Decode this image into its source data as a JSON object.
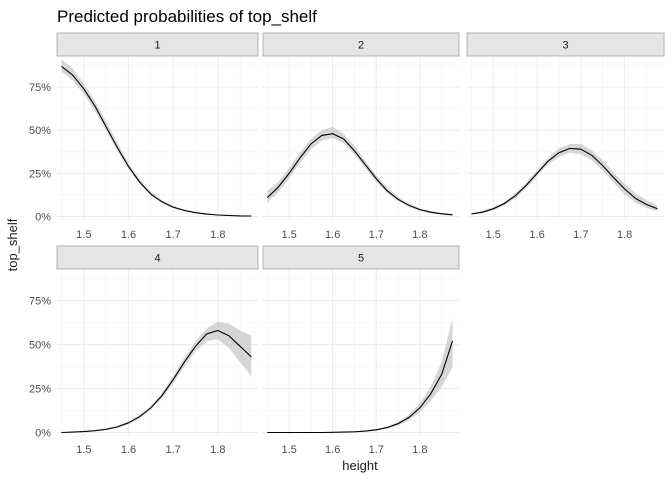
{
  "chart_data": {
    "type": "line",
    "title": "Predicted probabilities of top_shelf",
    "xlabel": "height",
    "ylabel": "top_shelf",
    "xlim": [
      1.44,
      1.89
    ],
    "ylim": [
      -0.02,
      0.93
    ],
    "x_ticks": [
      1.5,
      1.6,
      1.7,
      1.8
    ],
    "x_tick_labels": [
      "1.5",
      "1.6",
      "1.7",
      "1.8"
    ],
    "y_ticks": [
      0,
      0.25,
      0.5,
      0.75
    ],
    "y_tick_labels": [
      "0%",
      "25%",
      "50%",
      "75%"
    ],
    "grid": true,
    "x": [
      1.45,
      1.475,
      1.5,
      1.525,
      1.55,
      1.575,
      1.6,
      1.625,
      1.65,
      1.675,
      1.7,
      1.725,
      1.75,
      1.775,
      1.8,
      1.825,
      1.85,
      1.875
    ],
    "panels": [
      {
        "label": "1",
        "values": [
          0.87,
          0.82,
          0.74,
          0.64,
          0.52,
          0.4,
          0.29,
          0.2,
          0.13,
          0.085,
          0.055,
          0.035,
          0.022,
          0.014,
          0.009,
          0.006,
          0.004,
          0.003
        ],
        "lower": [
          0.84,
          0.79,
          0.71,
          0.61,
          0.5,
          0.38,
          0.275,
          0.19,
          0.12,
          0.078,
          0.049,
          0.03,
          0.018,
          0.011,
          0.007,
          0.004,
          0.002,
          0.001
        ],
        "upper": [
          0.91,
          0.86,
          0.77,
          0.67,
          0.55,
          0.43,
          0.31,
          0.215,
          0.145,
          0.095,
          0.063,
          0.042,
          0.028,
          0.019,
          0.013,
          0.01,
          0.008,
          0.006
        ]
      },
      {
        "label": "2",
        "values": [
          0.11,
          0.17,
          0.25,
          0.34,
          0.42,
          0.47,
          0.48,
          0.45,
          0.38,
          0.3,
          0.22,
          0.15,
          0.1,
          0.065,
          0.04,
          0.025,
          0.016,
          0.01
        ],
        "lower": [
          0.08,
          0.14,
          0.22,
          0.31,
          0.39,
          0.44,
          0.455,
          0.425,
          0.36,
          0.28,
          0.2,
          0.135,
          0.088,
          0.055,
          0.032,
          0.018,
          0.01,
          0.005
        ],
        "upper": [
          0.15,
          0.2,
          0.28,
          0.37,
          0.45,
          0.5,
          0.52,
          0.48,
          0.41,
          0.32,
          0.24,
          0.17,
          0.115,
          0.075,
          0.048,
          0.032,
          0.022,
          0.016
        ]
      },
      {
        "label": "3",
        "values": [
          0.015,
          0.025,
          0.045,
          0.075,
          0.12,
          0.18,
          0.25,
          0.32,
          0.37,
          0.395,
          0.39,
          0.355,
          0.295,
          0.225,
          0.16,
          0.105,
          0.07,
          0.045
        ],
        "lower": [
          0.01,
          0.019,
          0.036,
          0.065,
          0.105,
          0.165,
          0.235,
          0.3,
          0.345,
          0.37,
          0.36,
          0.325,
          0.265,
          0.195,
          0.13,
          0.08,
          0.05,
          0.03
        ],
        "upper": [
          0.021,
          0.032,
          0.055,
          0.085,
          0.135,
          0.195,
          0.27,
          0.34,
          0.395,
          0.42,
          0.42,
          0.385,
          0.325,
          0.255,
          0.19,
          0.135,
          0.095,
          0.065
        ]
      },
      {
        "label": "4",
        "values": [
          0.0,
          0.002,
          0.005,
          0.01,
          0.018,
          0.032,
          0.055,
          0.09,
          0.14,
          0.21,
          0.3,
          0.4,
          0.49,
          0.56,
          0.58,
          0.55,
          0.49,
          0.43
        ],
        "lower": [
          0.0,
          0.001,
          0.003,
          0.007,
          0.014,
          0.026,
          0.047,
          0.08,
          0.13,
          0.195,
          0.28,
          0.375,
          0.46,
          0.52,
          0.53,
          0.48,
          0.4,
          0.32
        ],
        "upper": [
          0.001,
          0.003,
          0.007,
          0.013,
          0.022,
          0.038,
          0.063,
          0.1,
          0.15,
          0.225,
          0.32,
          0.425,
          0.52,
          0.59,
          0.63,
          0.62,
          0.58,
          0.55
        ]
      },
      {
        "label": "5",
        "values": [
          0.0,
          0.0,
          0.0,
          0.0,
          0.0,
          0.0,
          0.001,
          0.002,
          0.004,
          0.008,
          0.015,
          0.028,
          0.05,
          0.085,
          0.14,
          0.22,
          0.33,
          0.52
        ],
        "lower": [
          0.0,
          0.0,
          0.0,
          0.0,
          0.0,
          0.0,
          0.0,
          0.001,
          0.002,
          0.005,
          0.011,
          0.022,
          0.04,
          0.07,
          0.115,
          0.18,
          0.26,
          0.37
        ],
        "upper": [
          0.0,
          0.0,
          0.0,
          0.0,
          0.0,
          0.001,
          0.002,
          0.003,
          0.006,
          0.011,
          0.019,
          0.034,
          0.06,
          0.1,
          0.165,
          0.26,
          0.4,
          0.65
        ]
      }
    ]
  }
}
